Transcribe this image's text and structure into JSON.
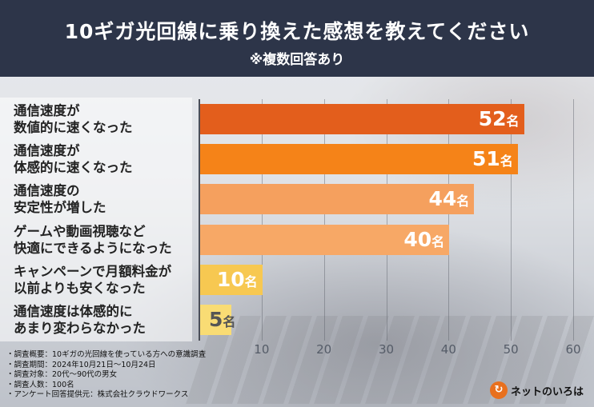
{
  "header": {
    "title": "10ギガ光回線に乗り換えた感想を教えてください",
    "subtitle": "※複数回答あり"
  },
  "chart_data": {
    "type": "bar",
    "orientation": "horizontal",
    "categories": [
      [
        "通信速度が",
        "数値的に速くなった"
      ],
      [
        "通信速度が",
        "体感的に速くなった"
      ],
      [
        "通信速度の",
        "安定性が増した"
      ],
      [
        "ゲームや動画視聴など",
        "快適にできるようになった"
      ],
      [
        "キャンペーンで月額料金が",
        "以前よりも安くなった"
      ],
      [
        "通信速度は体感的に",
        "あまり変わらなかった"
      ]
    ],
    "values": [
      52,
      51,
      44,
      40,
      10,
      5
    ],
    "value_unit": "名",
    "xlim": [
      0,
      60
    ],
    "x_ticks": [
      "10",
      "20",
      "30",
      "40",
      "50",
      "60"
    ],
    "grid": true,
    "bar_colors": [
      "#e35e1c",
      "#f58318",
      "#f5a05e",
      "#f7a866",
      "#f7c851",
      "#f9dc74"
    ],
    "label_colors": [
      "#ffffff",
      "#ffffff",
      "#ffffff",
      "#ffffff",
      "#ffffff",
      "#555555"
    ]
  },
  "notes": [
    "・調査概要：10ギガの光回線を使っている方への意識調査",
    "・調査期間：2024年10月21日〜10月24日",
    "・調査対象：20代〜90代の男女",
    "・調査人数：100名",
    "・アンケート回答提供元：株式会社クラウドワークス"
  ],
  "brand": {
    "icon": "net-iroha-logo-icon",
    "name": "ネットのいろは"
  }
}
